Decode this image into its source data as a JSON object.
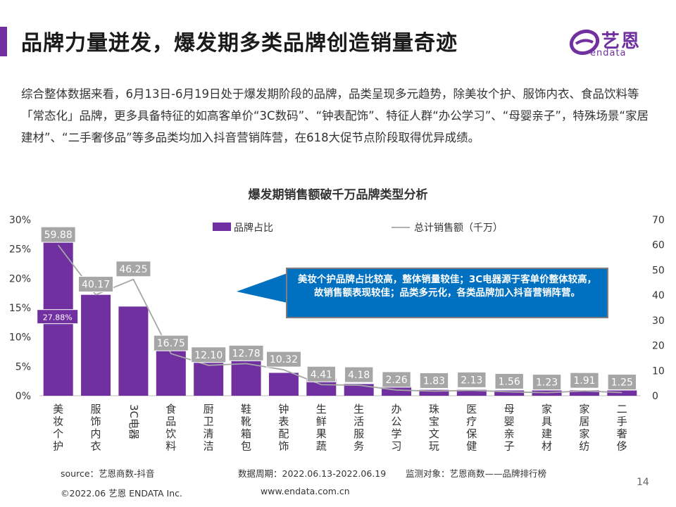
{
  "header": {
    "title": "品牌力量迸发，爆发期多类品牌创造销量奇迹",
    "logo_cn": "艺恩",
    "logo_en": "endata"
  },
  "intro": "综合整体数据来看，6月13日-6月19日处于爆发期阶段的品牌，品类呈现多元趋势，除美妆个护、服饰内衣、食品饮料等「常态化」品牌，更多具备特征的如高客单价“3C数码”、“钟表配饰”、特征人群“办公学习”、“母婴亲子”，特殊场景“家居建材”、“二手奢侈品”等多品类均加入抖音营销阵营，在618大促节点阶段取得优异成绩。",
  "callout": "美妆个护品牌占比较高，整体销量较佳；3C电器源于客单价整体较高，故销售额表现较佳；品类多元化，各类品牌加入抖音营销阵营。",
  "chart_data": {
    "type": "bar",
    "title": "爆发期销售额破千万品牌类型分析",
    "categories": [
      "美妆个护",
      "服饰内衣",
      "3C电器",
      "食品饮料",
      "厨卫清洁",
      "鞋靴箱包",
      "钟表配饰",
      "生鲜果蔬",
      "生活服务",
      "办公学习",
      "珠宝文玩",
      "医疗保健",
      "母婴亲子",
      "家具建材",
      "家居家纺",
      "二手奢侈"
    ],
    "series": [
      {
        "name": "品牌占比",
        "type": "bar",
        "axis": "left",
        "color": "#7030a0",
        "values": [
          27.88,
          17.2,
          15.2,
          8.5,
          6.3,
          6.6,
          3.9,
          2.9,
          2.0,
          1.6,
          1.0,
          1.0,
          0.9,
          0.9,
          0.9,
          0.9
        ]
      },
      {
        "name": "总计销售额（千万）",
        "type": "line",
        "axis": "right",
        "color": "#a6a6a6",
        "values": [
          59.88,
          40.17,
          46.25,
          16.75,
          12.1,
          12.78,
          10.32,
          4.41,
          4.18,
          2.26,
          1.83,
          2.13,
          1.56,
          1.23,
          1.91,
          1.25
        ],
        "labels": [
          "59.88",
          "40.17",
          "46.25",
          "16.75",
          "12.10",
          "12.78",
          "10.32",
          "4.41",
          "4.18",
          "2.26",
          "1.83",
          "2.13",
          "1.56",
          "1.23",
          "1.91",
          "1.25"
        ]
      }
    ],
    "bar_annotation": {
      "index": 0,
      "text": "27.88%"
    },
    "left_axis": {
      "min": 0,
      "max": 30,
      "ticks": [
        "0%",
        "5%",
        "10%",
        "15%",
        "20%",
        "25%",
        "30%"
      ]
    },
    "right_axis": {
      "min": 0,
      "max": 70,
      "ticks": [
        "0",
        "10",
        "20",
        "30",
        "40",
        "50",
        "60",
        "70"
      ]
    },
    "legend": {
      "position": "top",
      "bar_label": "品牌占比",
      "line_label": "总计销售额（千万）"
    },
    "grid": false
  },
  "footer": {
    "source": "source：艺恩商数-抖音",
    "period": "数据周期：2022.06.13-2022.06.19",
    "monitor": "监测对象：艺恩商数——品牌排行榜",
    "copyright": "©2022.06 艺恩 ENDATA Inc.",
    "website": "www.endata.com.cn",
    "page_number": "14"
  },
  "colors": {
    "accent": "#7030a0",
    "callout": "#0070c0",
    "line": "#a6a6a6"
  }
}
